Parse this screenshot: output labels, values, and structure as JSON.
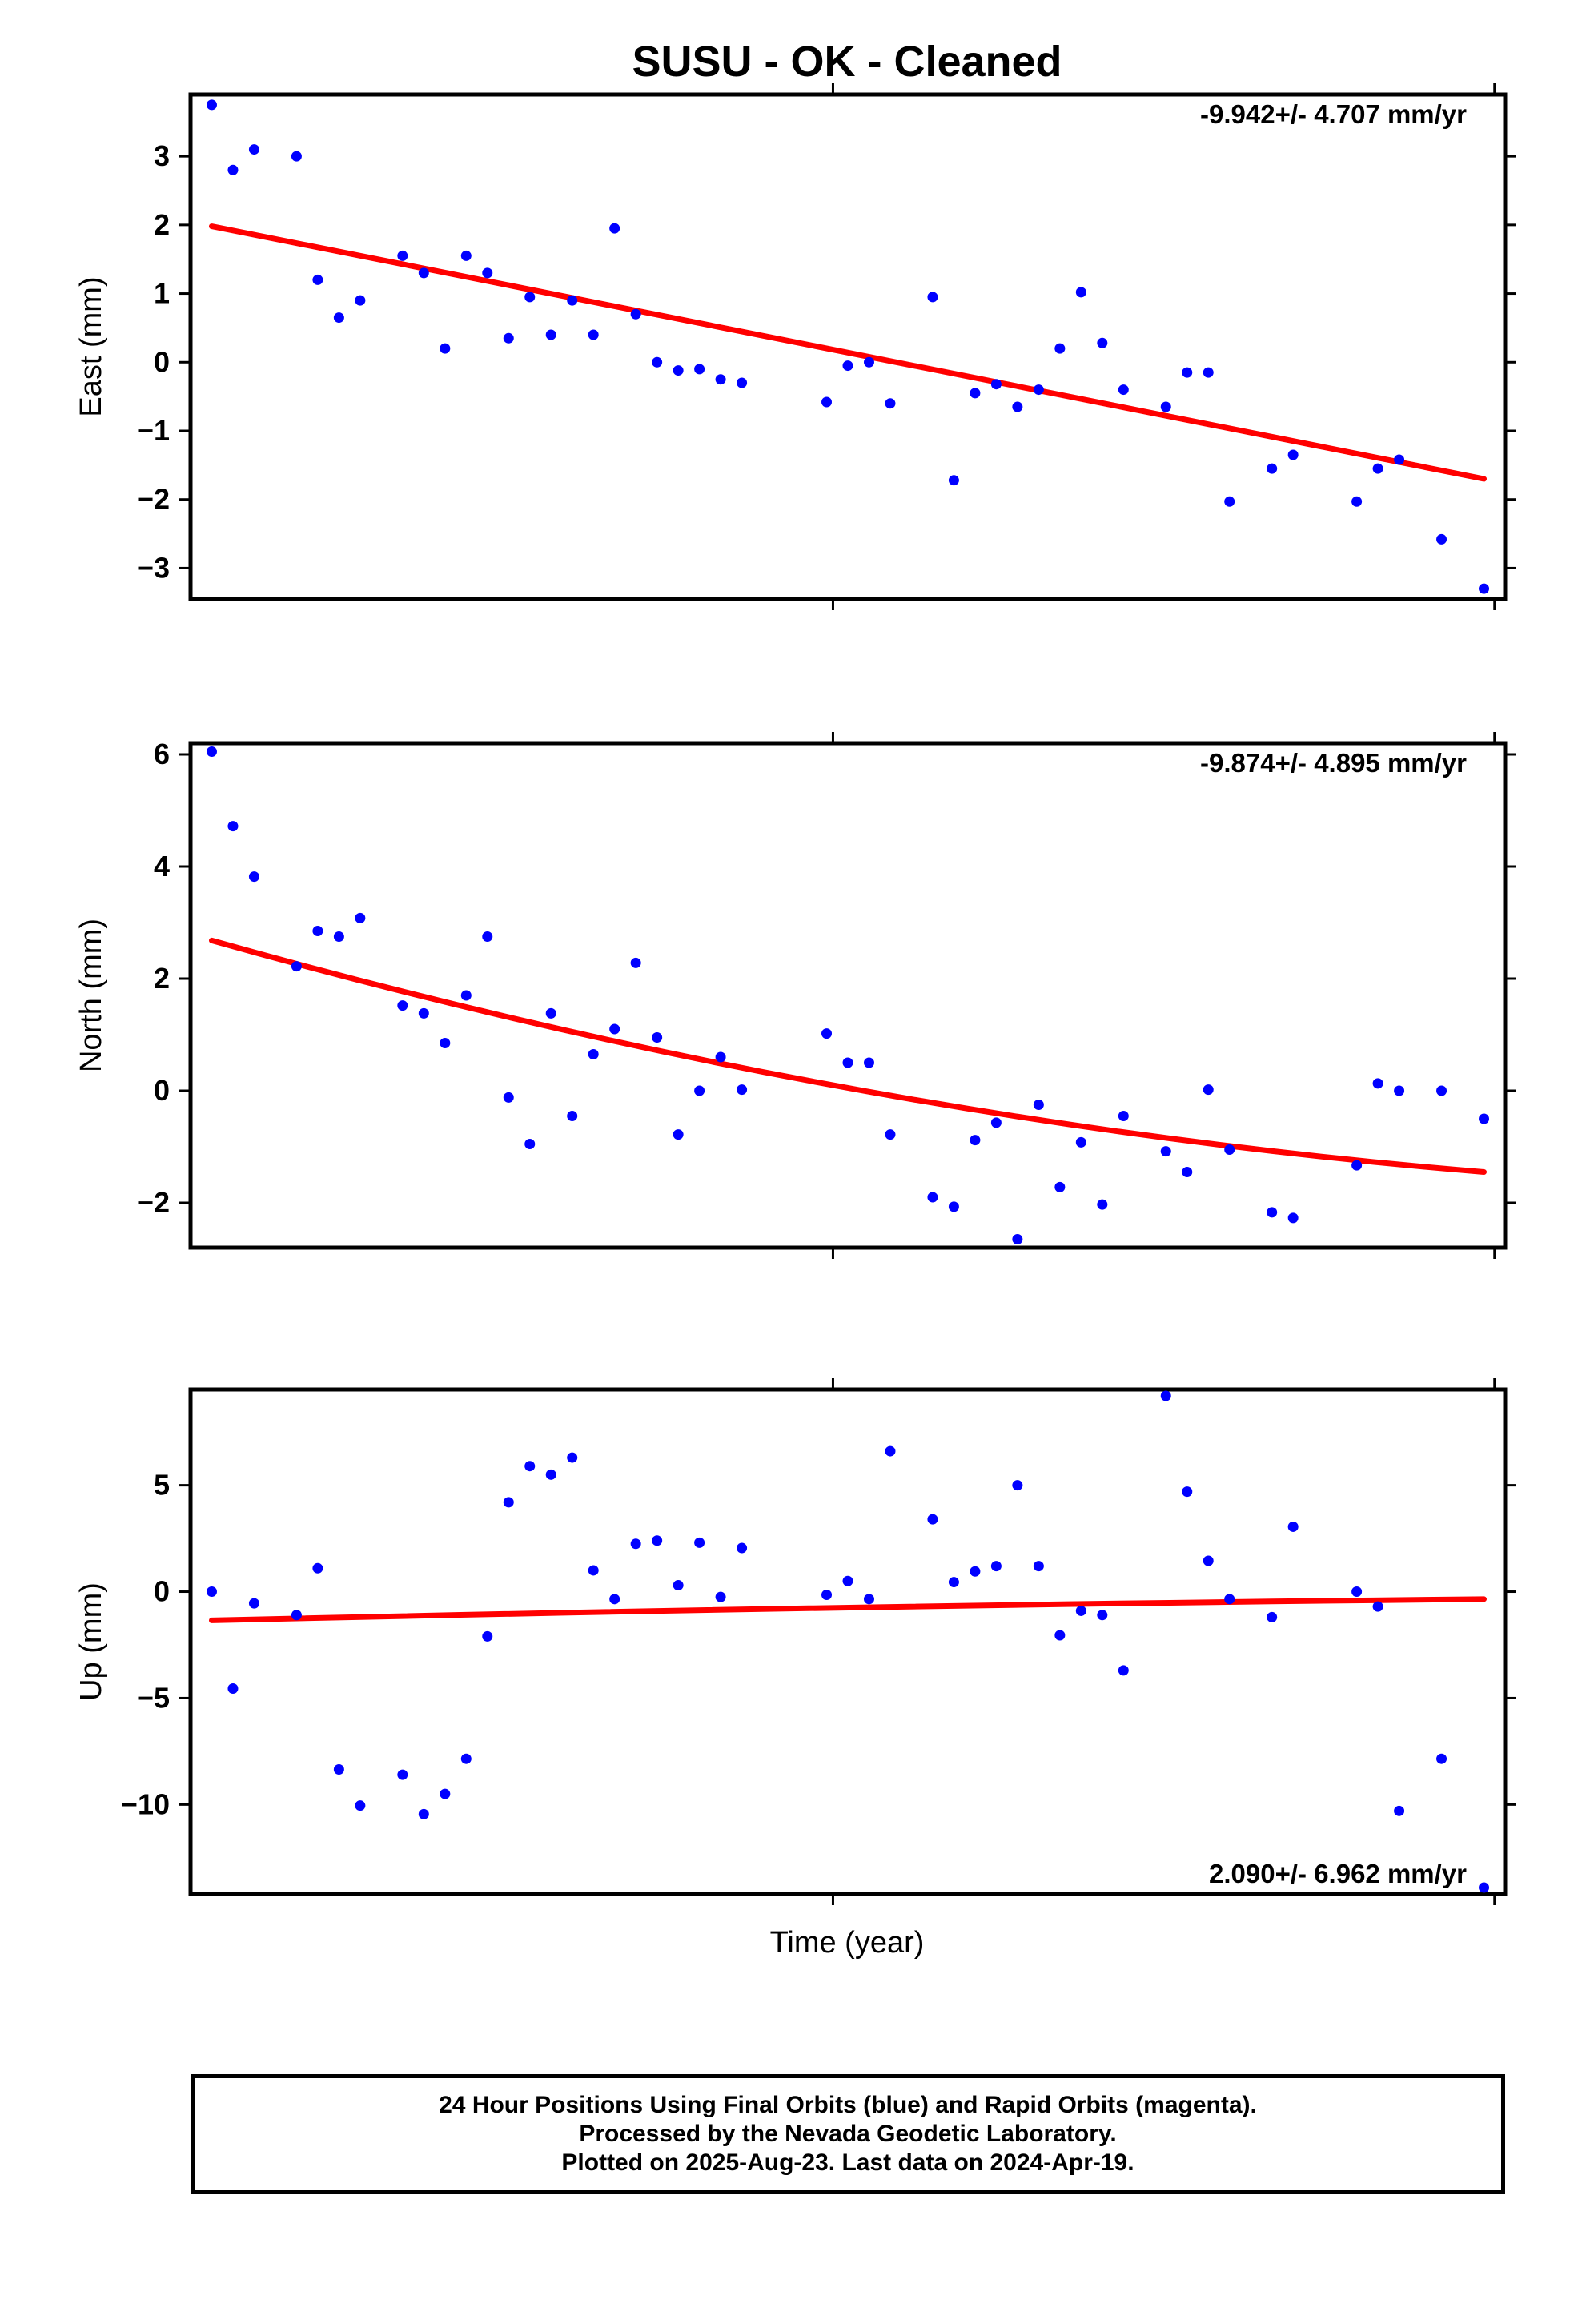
{
  "chart_data": {
    "type": "scatter",
    "title": "SUSU  - OK - Cleaned",
    "xlabel": "Time (year)",
    "x_index_note": "",
    "panels": [
      {
        "name": "east",
        "ylabel": "East (mm)",
        "rate_label": "-9.942+/- 4.707 mm/yr",
        "rate_position": "top-right",
        "ylim": [
          -3.45,
          3.9
        ],
        "yticks": [
          3,
          2,
          1,
          0,
          -1,
          -2,
          -3
        ],
        "ytick_labels": [
          "3",
          "2",
          "1",
          "0",
          "−1",
          "−2",
          "−3"
        ],
        "points": [
          [
            1,
            3.75
          ],
          [
            2,
            2.8
          ],
          [
            3,
            3.1
          ],
          [
            5,
            3.0
          ],
          [
            6,
            1.2
          ],
          [
            7,
            0.65
          ],
          [
            8,
            0.9
          ],
          [
            10,
            1.55
          ],
          [
            11,
            1.3
          ],
          [
            12,
            0.2
          ],
          [
            13,
            1.55
          ],
          [
            14,
            1.3
          ],
          [
            15,
            0.35
          ],
          [
            16,
            0.95
          ],
          [
            17,
            0.4
          ],
          [
            18,
            0.9
          ],
          [
            19,
            0.4
          ],
          [
            20,
            1.95
          ],
          [
            21,
            0.7
          ],
          [
            22,
            0.0
          ],
          [
            23,
            -0.12
          ],
          [
            24,
            -0.1
          ],
          [
            25,
            -0.25
          ],
          [
            26,
            -0.3
          ],
          [
            30,
            -0.58
          ],
          [
            31,
            -0.05
          ],
          [
            32,
            0.0
          ],
          [
            33,
            -0.6
          ],
          [
            35,
            0.95
          ],
          [
            36,
            -1.72
          ],
          [
            37,
            -0.45
          ],
          [
            38,
            -0.32
          ],
          [
            39,
            -0.65
          ],
          [
            40,
            -0.4
          ],
          [
            41,
            0.2
          ],
          [
            42,
            1.02
          ],
          [
            43,
            0.28
          ],
          [
            44,
            -0.4
          ],
          [
            46,
            -0.65
          ],
          [
            47,
            -0.15
          ],
          [
            48,
            -0.15
          ],
          [
            49,
            -2.03
          ],
          [
            51,
            -1.55
          ],
          [
            52,
            -1.35
          ],
          [
            55,
            -2.03
          ],
          [
            56,
            -1.55
          ],
          [
            57,
            -1.42
          ],
          [
            59,
            -2.58
          ],
          [
            61,
            -3.3
          ]
        ],
        "trend": [
          [
            1,
            1.98
          ],
          [
            31,
            0.15
          ],
          [
            61,
            -1.7
          ]
        ]
      },
      {
        "name": "north",
        "ylabel": "North (mm)",
        "rate_label": "-9.874+/- 4.895 mm/yr",
        "rate_position": "top-right",
        "ylim": [
          -2.8,
          6.2
        ],
        "yticks": [
          6,
          4,
          2,
          0,
          -2
        ],
        "ytick_labels": [
          "6",
          "4",
          "2",
          "0",
          "−2"
        ],
        "points": [
          [
            1,
            6.05
          ],
          [
            2,
            4.72
          ],
          [
            3,
            3.82
          ],
          [
            5,
            2.22
          ],
          [
            6,
            2.85
          ],
          [
            7,
            2.75
          ],
          [
            8,
            3.08
          ],
          [
            10,
            1.52
          ],
          [
            11,
            1.38
          ],
          [
            12,
            0.85
          ],
          [
            13,
            1.7
          ],
          [
            14,
            2.75
          ],
          [
            15,
            -0.12
          ],
          [
            16,
            -0.95
          ],
          [
            17,
            1.38
          ],
          [
            18,
            -0.45
          ],
          [
            19,
            0.65
          ],
          [
            20,
            1.1
          ],
          [
            21,
            2.28
          ],
          [
            22,
            0.95
          ],
          [
            23,
            -0.78
          ],
          [
            24,
            0.0
          ],
          [
            25,
            0.6
          ],
          [
            26,
            0.02
          ],
          [
            30,
            1.02
          ],
          [
            31,
            0.5
          ],
          [
            32,
            0.5
          ],
          [
            33,
            -0.78
          ],
          [
            35,
            -1.9
          ],
          [
            36,
            -2.07
          ],
          [
            37,
            -0.88
          ],
          [
            38,
            -0.57
          ],
          [
            39,
            -2.65
          ],
          [
            40,
            -0.25
          ],
          [
            41,
            -1.72
          ],
          [
            42,
            -0.92
          ],
          [
            43,
            -2.03
          ],
          [
            44,
            -0.45
          ],
          [
            46,
            -1.08
          ],
          [
            47,
            -1.45
          ],
          [
            48,
            0.02
          ],
          [
            49,
            -1.05
          ],
          [
            51,
            -2.17
          ],
          [
            52,
            -2.27
          ],
          [
            55,
            -1.33
          ],
          [
            56,
            0.13
          ],
          [
            57,
            0.0
          ],
          [
            59,
            0.0
          ],
          [
            61,
            -0.5
          ]
        ],
        "trend": [
          [
            1,
            2.68
          ],
          [
            31,
            0.05
          ],
          [
            61,
            -1.45
          ]
        ]
      },
      {
        "name": "up",
        "ylabel": "Up (mm)",
        "rate_label": "2.090+/- 6.962 mm/yr",
        "rate_position": "bottom-right",
        "ylim": [
          -14.2,
          9.5
        ],
        "yticks": [
          5,
          0,
          -5,
          -10
        ],
        "ytick_labels": [
          "5",
          "0",
          "−5",
          "−10"
        ],
        "points": [
          [
            1,
            0.0
          ],
          [
            2,
            -4.55
          ],
          [
            3,
            -0.55
          ],
          [
            5,
            -1.1
          ],
          [
            6,
            1.1
          ],
          [
            7,
            -8.35
          ],
          [
            8,
            -10.05
          ],
          [
            10,
            -8.6
          ],
          [
            11,
            -10.45
          ],
          [
            12,
            -9.5
          ],
          [
            13,
            -7.85
          ],
          [
            14,
            -2.1
          ],
          [
            15,
            4.2
          ],
          [
            16,
            5.9
          ],
          [
            17,
            5.5
          ],
          [
            18,
            6.3
          ],
          [
            19,
            1.0
          ],
          [
            20,
            -0.35
          ],
          [
            21,
            2.25
          ],
          [
            22,
            2.4
          ],
          [
            23,
            0.3
          ],
          [
            24,
            2.3
          ],
          [
            25,
            -0.25
          ],
          [
            26,
            2.05
          ],
          [
            30,
            -0.15
          ],
          [
            31,
            0.5
          ],
          [
            32,
            -0.35
          ],
          [
            33,
            6.6
          ],
          [
            35,
            3.4
          ],
          [
            36,
            0.45
          ],
          [
            37,
            0.95
          ],
          [
            38,
            1.2
          ],
          [
            39,
            5.0
          ],
          [
            40,
            1.2
          ],
          [
            41,
            -2.05
          ],
          [
            42,
            -0.9
          ],
          [
            43,
            -1.1
          ],
          [
            44,
            -3.7
          ],
          [
            46,
            9.2
          ],
          [
            47,
            4.7
          ],
          [
            48,
            1.45
          ],
          [
            49,
            -0.35
          ],
          [
            51,
            -1.2
          ],
          [
            52,
            3.05
          ],
          [
            55,
            0.0
          ],
          [
            56,
            -0.7
          ],
          [
            57,
            -10.3
          ],
          [
            59,
            -7.85
          ],
          [
            61,
            -13.9
          ]
        ],
        "trend": [
          [
            1,
            -1.35
          ],
          [
            31,
            -0.75
          ],
          [
            61,
            -0.35
          ]
        ]
      }
    ],
    "colors": {
      "points": "#0000ff",
      "trend": "#ff0000",
      "frame": "#000000"
    },
    "grid": false
  },
  "footer": {
    "line1": "24 Hour Positions Using Final Orbits (blue) and Rapid Orbits (magenta).",
    "line2": "Processed by the Nevada Geodetic Laboratory.",
    "line3": "Plotted on 2025-Aug-23. Last data on 2024-Apr-19."
  }
}
